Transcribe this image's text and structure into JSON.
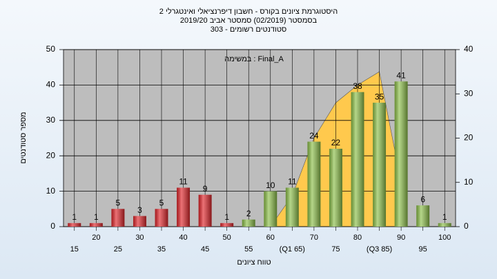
{
  "chart_data": {
    "type": "bar",
    "title": "היסטוגרמת ציונים בקורס - חשבון דיפרנציאלי ואינטגרלי 2",
    "subtitle": "בסמסטר  (02/2019)  סמסטר אביב 2019/20",
    "subtitle2": "סטודנטים רשומים - 303",
    "annotation": "במשימה : Final_A",
    "x_label": "טווח ציונים",
    "y_label": "מספר סטודנטים",
    "categories": [
      "15",
      "20",
      "25",
      "30",
      "35",
      "40",
      "45",
      "50",
      "55",
      "60",
      "(Q1 65)",
      "70",
      "75",
      "80",
      "(Q3 85)",
      "90",
      "95",
      "100"
    ],
    "values": [
      1,
      1,
      5,
      3,
      5,
      11,
      9,
      1,
      2,
      10,
      11,
      24,
      22,
      38,
      35,
      41,
      6,
      1
    ],
    "bar_colors": [
      "#e0262b",
      "#e0262b",
      "#e0262b",
      "#e0262b",
      "#e0262b",
      "#e0262b",
      "#e0262b",
      "#e0262b",
      "#8dc04a",
      "#8dc04a",
      "#8dc04a",
      "#8dc04a",
      "#8dc04a",
      "#8dc04a",
      "#8dc04a",
      "#8dc04a",
      "#8dc04a",
      "#8dc04a"
    ],
    "area": {
      "color": "#ffc94d",
      "axis": "y2",
      "values": [
        null,
        null,
        null,
        null,
        null,
        null,
        null,
        null,
        null,
        0,
        7,
        20,
        28,
        32,
        35,
        10,
        null,
        null
      ]
    },
    "ylim": [
      0,
      50
    ],
    "yticks": [
      0,
      10,
      20,
      30,
      40,
      50
    ],
    "y2lim": [
      0,
      40
    ],
    "y2ticks": [
      0,
      10,
      20,
      30,
      40
    ],
    "grid": true
  }
}
